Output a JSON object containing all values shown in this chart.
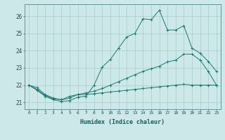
{
  "xlabel": "Humidex (Indice chaleur)",
  "background_color": "#cde8e8",
  "grid_color": "#aacccc",
  "line_color": "#1a7a6e",
  "xlim": [
    -0.5,
    23.5
  ],
  "ylim": [
    20.6,
    26.7
  ],
  "xticks": [
    0,
    1,
    2,
    3,
    4,
    5,
    6,
    7,
    8,
    9,
    10,
    11,
    12,
    13,
    14,
    15,
    16,
    17,
    18,
    19,
    20,
    21,
    22,
    23
  ],
  "yticks": [
    21,
    22,
    23,
    24,
    25,
    26
  ],
  "series1": [
    22.0,
    21.7,
    21.35,
    21.15,
    21.05,
    21.1,
    21.3,
    21.35,
    22.0,
    23.05,
    23.5,
    24.15,
    24.8,
    25.0,
    25.85,
    25.8,
    26.35,
    25.2,
    25.2,
    25.45,
    24.15,
    23.85,
    23.38,
    22.8
  ],
  "series2": [
    22.0,
    21.75,
    21.4,
    21.2,
    21.15,
    21.35,
    21.45,
    21.45,
    21.5,
    21.55,
    21.6,
    21.65,
    21.7,
    21.75,
    21.8,
    21.85,
    21.9,
    21.95,
    22.0,
    22.05,
    22.0,
    22.0,
    22.0,
    22.0
  ],
  "series3": [
    22.0,
    21.85,
    21.45,
    21.25,
    21.15,
    21.25,
    21.45,
    21.55,
    21.65,
    21.8,
    22.0,
    22.2,
    22.4,
    22.6,
    22.8,
    22.95,
    23.1,
    23.35,
    23.45,
    23.8,
    23.8,
    23.45,
    22.8,
    22.0
  ]
}
